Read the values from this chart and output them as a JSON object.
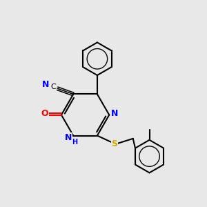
{
  "bg_color": "#e8e8e8",
  "bond_color": "#000000",
  "bond_width": 1.5,
  "atom_colors": {
    "N": "#0000ff",
    "O": "#ff0000",
    "S": "#ccaa00"
  }
}
